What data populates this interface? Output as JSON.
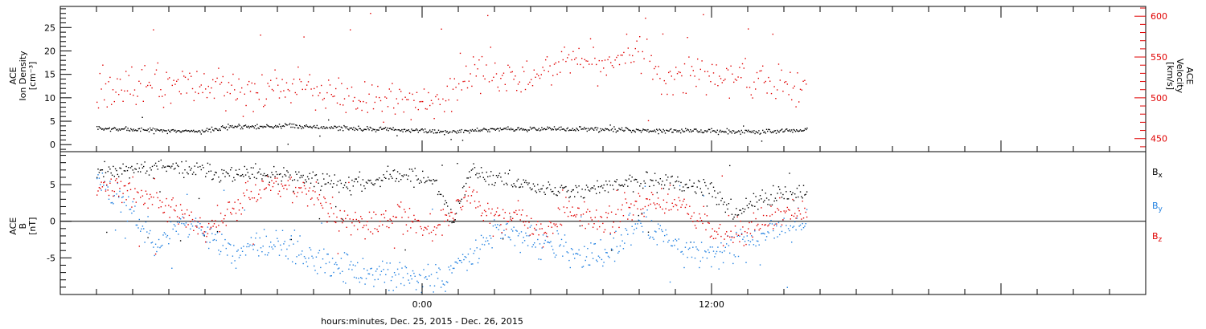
{
  "chart_data": [
    {
      "id": "panel-top",
      "type": "scatter",
      "ylabel_left_lines": [
        "ACE",
        "Ion Density",
        "[cm⁻³]"
      ],
      "ylabel_right_lines": [
        "ACE",
        "Velocity",
        "[km/s]"
      ],
      "ylim_left": [
        -1.5,
        29.5
      ],
      "yticks_left": [
        0,
        5,
        10,
        15,
        20,
        25
      ],
      "ylim_right": [
        434,
        612
      ],
      "yticks_right": [
        450,
        500,
        550,
        600
      ],
      "colors": {
        "density": "#000000",
        "velocity": "#e00000"
      },
      "series": [
        {
          "key": "density",
          "axis": "left",
          "x_start": -13.5,
          "x_end": 15.95,
          "step": 0.04,
          "seed": 7,
          "jitter": 0.25,
          "outlier_rate": 0.025,
          "outlier_range": [
            0,
            6
          ],
          "profile": [
            [
              -13.5,
              3.5
            ],
            [
              -11,
              3.2
            ],
            [
              -9,
              3.0
            ],
            [
              -8,
              4.0
            ],
            [
              -5,
              4.0
            ],
            [
              -3,
              3.6
            ],
            [
              -1,
              3.3
            ],
            [
              1,
              2.8
            ],
            [
              3,
              3.4
            ],
            [
              6,
              3.5
            ],
            [
              9,
              3.2
            ],
            [
              12,
              3.0
            ],
            [
              14,
              2.8
            ],
            [
              15.95,
              3.3
            ]
          ]
        },
        {
          "key": "velocity",
          "axis": "right",
          "x_start": -13.5,
          "x_end": 15.95,
          "step": 0.06,
          "seed": 42,
          "jitter": 12,
          "outlier_rate": 0.07,
          "outlier_range": [
            470,
            605
          ],
          "profile": [
            [
              -13.5,
              510
            ],
            [
              -12,
              512
            ],
            [
              -10,
              515
            ],
            [
              -8.5,
              518
            ],
            [
              -7.5,
              505
            ],
            [
              -6,
              515
            ],
            [
              -4,
              505
            ],
            [
              -2,
              500
            ],
            [
              0,
              495
            ],
            [
              1.5,
              505
            ],
            [
              2,
              535
            ],
            [
              3,
              520
            ],
            [
              4,
              525
            ],
            [
              6,
              545
            ],
            [
              8,
              548
            ],
            [
              9,
              555
            ],
            [
              10,
              530
            ],
            [
              12,
              527
            ],
            [
              13,
              532
            ],
            [
              14,
              525
            ],
            [
              15,
              515
            ],
            [
              15.95,
              505
            ]
          ]
        }
      ]
    },
    {
      "id": "panel-bottom",
      "type": "scatter",
      "ylabel_lines": [
        "ACE",
        "B",
        "[nT]"
      ],
      "ylim": [
        -10,
        9.5
      ],
      "yticks": [
        -5,
        0,
        5
      ],
      "zero_line": 0,
      "colors": {
        "bx": "#000000",
        "by": "#1f7fe0",
        "bz": "#e00000"
      },
      "series": [
        {
          "key": "bx",
          "name": "B",
          "subscript": "x",
          "x_start": -13.5,
          "x_end": 15.95,
          "step": 0.045,
          "seed": 11,
          "jitter": 0.6,
          "outlier_rate": 0.04,
          "outlier_range": [
            -4,
            8
          ],
          "profile": [
            [
              -13.5,
              7
            ],
            [
              -11,
              7.5
            ],
            [
              -8,
              6.5
            ],
            [
              -5,
              6
            ],
            [
              -3,
              5
            ],
            [
              -1,
              6.5
            ],
            [
              0.5,
              5.5
            ],
            [
              1.3,
              0
            ],
            [
              2,
              7
            ],
            [
              4,
              5
            ],
            [
              6,
              4
            ],
            [
              8,
              5
            ],
            [
              10,
              5.5
            ],
            [
              11,
              5
            ],
            [
              12,
              4
            ],
            [
              13,
              1
            ],
            [
              14,
              3
            ],
            [
              15.95,
              4
            ]
          ]
        },
        {
          "key": "by",
          "name": "B",
          "subscript": "y",
          "x_start": -13.5,
          "x_end": 15.95,
          "step": 0.045,
          "seed": 23,
          "jitter": 1.0,
          "outlier_rate": 0.04,
          "outlier_range": [
            -9,
            5
          ],
          "profile": [
            [
              -13.5,
              6
            ],
            [
              -12,
              1
            ],
            [
              -11,
              -3
            ],
            [
              -10,
              0
            ],
            [
              -9,
              -1
            ],
            [
              -8,
              -4
            ],
            [
              -6,
              -3
            ],
            [
              -4,
              -6
            ],
            [
              -2,
              -7
            ],
            [
              0,
              -8
            ],
            [
              1,
              -7.5
            ],
            [
              2,
              -4
            ],
            [
              3,
              -1
            ],
            [
              4,
              -2
            ],
            [
              5,
              -3
            ],
            [
              6,
              -4
            ],
            [
              7,
              -5
            ],
            [
              8,
              -3
            ],
            [
              9,
              0
            ],
            [
              10,
              -2
            ],
            [
              11,
              -4
            ],
            [
              12,
              -4.5
            ],
            [
              13,
              -3
            ],
            [
              14,
              -2
            ],
            [
              15.95,
              0.5
            ]
          ]
        },
        {
          "key": "bz",
          "name": "B",
          "subscript": "z",
          "x_start": -13.5,
          "x_end": 15.95,
          "step": 0.045,
          "seed": 37,
          "jitter": 1.0,
          "outlier_rate": 0.04,
          "outlier_range": [
            -8,
            7
          ],
          "profile": [
            [
              -13.5,
              5
            ],
            [
              -12,
              4
            ],
            [
              -11,
              3
            ],
            [
              -10,
              1
            ],
            [
              -9,
              -2
            ],
            [
              -8,
              2
            ],
            [
              -7,
              4
            ],
            [
              -5,
              5
            ],
            [
              -3,
              -1
            ],
            [
              -1,
              1
            ],
            [
              0.5,
              -1
            ],
            [
              2,
              4
            ],
            [
              3,
              1
            ],
            [
              4,
              1
            ],
            [
              5,
              -2
            ],
            [
              6,
              2
            ],
            [
              7,
              0
            ],
            [
              8,
              0.5
            ],
            [
              9,
              3
            ],
            [
              10,
              3
            ],
            [
              11,
              2
            ],
            [
              12,
              -1
            ],
            [
              13,
              -2
            ],
            [
              14,
              0
            ],
            [
              15,
              2
            ],
            [
              15.95,
              1
            ]
          ]
        }
      ]
    }
  ],
  "xaxis": {
    "range": [
      -15,
      30
    ],
    "tick_labels": [
      {
        "value": 0,
        "label": "0:00"
      },
      {
        "value": 12,
        "label": "12:00"
      }
    ],
    "major_tick_values": [
      0,
      12,
      24
    ],
    "minor_tick_step": 1.5,
    "xlabel": "hours:minutes, Dec. 25, 2015 - Dec. 26, 2015"
  }
}
